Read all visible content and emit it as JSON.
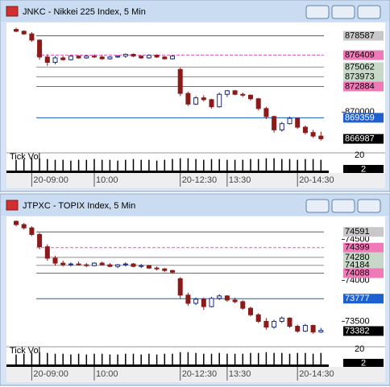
{
  "chart_data": [
    {
      "type": "candlestick",
      "title": "JNKC - Nikkei 225 Index, 5 Min",
      "categories": [
        null,
        null,
        "20-09:00",
        null,
        null,
        null,
        null,
        null,
        null,
        null,
        "10:00",
        null,
        null,
        null,
        null,
        null,
        null,
        null,
        null,
        null,
        null,
        "20-12:30",
        null,
        null,
        null,
        null,
        null,
        "13:30",
        null,
        null,
        null,
        null,
        null,
        null,
        null,
        null,
        "20-14:30",
        null,
        null,
        null
      ],
      "open": [
        879300,
        879100,
        878800,
        878100,
        876200,
        875600,
        876100,
        875900,
        876300,
        876100,
        876300,
        876200,
        876000,
        876200,
        876300,
        876500,
        876300,
        876100,
        876400,
        876200,
        876000,
        874800,
        872100,
        870900,
        871600,
        871400,
        870600,
        872000,
        872400,
        872000,
        871900,
        871500,
        870400,
        869500,
        868000,
        868700,
        869300,
        868300,
        867700,
        867300
      ],
      "high": [
        879500,
        879200,
        879000,
        878200,
        876500,
        876300,
        876300,
        876400,
        876400,
        876400,
        876500,
        876400,
        876300,
        876400,
        876600,
        876600,
        876400,
        876500,
        876500,
        876300,
        876400,
        875000,
        872300,
        871800,
        871900,
        871500,
        872200,
        872500,
        872500,
        872200,
        872000,
        871600,
        870600,
        869600,
        868900,
        869500,
        869400,
        868500,
        868000,
        867800
      ],
      "low": [
        879000,
        878700,
        877900,
        875900,
        875200,
        875400,
        875800,
        875800,
        876000,
        876000,
        876100,
        875900,
        875900,
        876100,
        876100,
        876200,
        876000,
        876000,
        876100,
        875900,
        875900,
        871800,
        870700,
        870800,
        871200,
        870400,
        870500,
        871700,
        871900,
        871700,
        871300,
        870200,
        869200,
        867700,
        867800,
        868600,
        868100,
        867500,
        867100,
        866800
      ],
      "close": [
        879100,
        878800,
        878100,
        876200,
        875600,
        876100,
        875900,
        876300,
        876100,
        876300,
        876200,
        876000,
        876200,
        876300,
        876500,
        876300,
        876100,
        876400,
        876200,
        876000,
        876300,
        872100,
        870900,
        871600,
        871400,
        870600,
        872000,
        872400,
        872000,
        871900,
        871500,
        870400,
        869500,
        868000,
        868700,
        869300,
        868300,
        867700,
        867300,
        867000
      ],
      "up_color": "#1a2a80",
      "down_color": "#8b1a1a",
      "ylim": [
        865500,
        879900
      ],
      "yticks": [
        870000
      ],
      "levels": [
        {
          "value": 878587,
          "color": "#606060",
          "label_bg": "#c8c8c8"
        },
        {
          "value": 876409,
          "color": "#e060c0",
          "label_bg": "#f07ab8"
        },
        {
          "value": 875062,
          "color": "#909090",
          "label_bg": "#c8d8c8"
        },
        {
          "value": 873973,
          "color": "#909090",
          "label_bg": "#c8d8c8"
        },
        {
          "value": 872884,
          "color": "#c04080",
          "label_bg": "#f07ab8"
        },
        {
          "value": 869359,
          "color": "#1060c0",
          "label_bg": "#1e60d0"
        }
      ],
      "last": 866987,
      "volume": {
        "label": "Tick Vol",
        "values": [
          14,
          15,
          16,
          16,
          15,
          14,
          14,
          13,
          14,
          14,
          15,
          14,
          14,
          13,
          14,
          15,
          14,
          14,
          13,
          14,
          15,
          16,
          16,
          15,
          14,
          15,
          15,
          14,
          14,
          14,
          15,
          15,
          16,
          16,
          15,
          15,
          14,
          15,
          15,
          14
        ],
        "ylim": [
          0,
          22
        ],
        "yticks": [
          20
        ],
        "last": 2
      }
    },
    {
      "type": "candlestick",
      "title": "JTPXC - TOPIX Index, 5 Min",
      "categories": [
        null,
        null,
        "20-09:00",
        null,
        null,
        null,
        null,
        null,
        null,
        null,
        "10:00",
        null,
        null,
        null,
        null,
        null,
        null,
        null,
        null,
        null,
        null,
        "20-12:30",
        null,
        null,
        null,
        null,
        null,
        "13:30",
        null,
        null,
        null,
        null,
        null,
        null,
        null,
        null,
        "20-14:30",
        null,
        null,
        null
      ],
      "open": [
        74720,
        74680,
        74640,
        74560,
        74410,
        74270,
        74210,
        74190,
        74200,
        74190,
        74180,
        74210,
        74190,
        74170,
        74190,
        74200,
        74170,
        74180,
        74150,
        74140,
        74120,
        74020,
        73820,
        73720,
        73770,
        73680,
        73780,
        73810,
        73760,
        73740,
        73660,
        73580,
        73500,
        73430,
        73500,
        73540,
        73440,
        73380,
        73450,
        73370
      ],
      "high": [
        74730,
        74700,
        74660,
        74580,
        74440,
        74300,
        74240,
        74220,
        74230,
        74210,
        74220,
        74230,
        74210,
        74200,
        74220,
        74210,
        74200,
        74190,
        74170,
        74150,
        74130,
        74040,
        73850,
        73790,
        73790,
        73800,
        73830,
        73820,
        73790,
        73760,
        73680,
        73600,
        73540,
        73520,
        73560,
        73550,
        73460,
        73470,
        73460,
        73420
      ],
      "low": [
        74660,
        74620,
        74540,
        74380,
        74240,
        74180,
        74170,
        74170,
        74180,
        74160,
        74170,
        74180,
        74160,
        74150,
        74170,
        74160,
        74150,
        74140,
        74120,
        74100,
        74080,
        73780,
        73690,
        73700,
        73640,
        73670,
        73760,
        73740,
        73720,
        73640,
        73560,
        73480,
        73400,
        73410,
        73480,
        73420,
        73360,
        73370,
        73350,
        73360
      ],
      "close": [
        74680,
        74640,
        74560,
        74410,
        74270,
        74210,
        74190,
        74200,
        74190,
        74180,
        74210,
        74190,
        74170,
        74190,
        74200,
        74170,
        74180,
        74150,
        74140,
        74120,
        74100,
        73820,
        73720,
        73770,
        73680,
        73780,
        73810,
        73760,
        73740,
        73660,
        73580,
        73500,
        73430,
        73500,
        73540,
        73440,
        73380,
        73450,
        73370,
        73390
      ],
      "up_color": "#1a2a80",
      "down_color": "#8b1a1a",
      "ylim": [
        73200,
        74760
      ],
      "yticks": [
        74500,
        74000,
        73500
      ],
      "levels": [
        {
          "value": 74591,
          "color": "#606060",
          "label_bg": "#c8c8c8"
        },
        {
          "value": 74399,
          "color": "#e060c0",
          "label_bg": "#f07ab8"
        },
        {
          "value": 74280,
          "color": "#909090",
          "label_bg": "#c8d8c8"
        },
        {
          "value": 74184,
          "color": "#909090",
          "label_bg": "#c8d8c8"
        },
        {
          "value": 74088,
          "color": "#c04080",
          "label_bg": "#f07ab8"
        },
        {
          "value": 73777,
          "color": "#1060c0",
          "label_bg": "#1e60d0"
        }
      ],
      "last": 73382,
      "volume": {
        "label": "Tick Vol",
        "values": [
          13,
          14,
          15,
          16,
          15,
          14,
          14,
          13,
          14,
          13,
          14,
          14,
          13,
          13,
          14,
          14,
          13,
          14,
          13,
          14,
          14,
          16,
          16,
          15,
          14,
          14,
          15,
          14,
          14,
          14,
          15,
          15,
          16,
          15,
          15,
          14,
          15,
          15,
          14,
          15
        ],
        "ylim": [
          0,
          22
        ],
        "yticks": [
          20
        ],
        "last": 2
      }
    }
  ]
}
